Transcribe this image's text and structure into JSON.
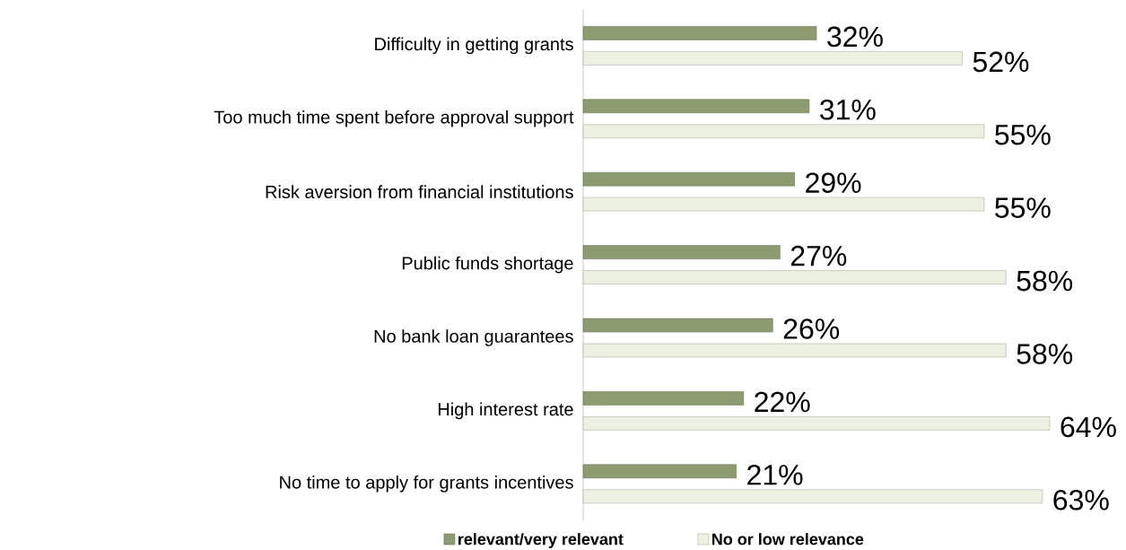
{
  "chart_data": {
    "type": "bar",
    "orientation": "horizontal",
    "legend": "bottom",
    "categories": [
      "Difficulty in getting grants",
      "Too much time spent before approval support",
      "Risk aversion from financial institutions",
      "Public funds shortage",
      "No bank loan guarantees",
      "High interest rate",
      "No time to apply for grants incentives"
    ],
    "series": [
      {
        "name": "relevant/very relevant",
        "color": "#8c9b70",
        "values": [
          32,
          31,
          29,
          27,
          26,
          22,
          21
        ],
        "value_labels": [
          "32%",
          "31%",
          "29%",
          "27%",
          "26%",
          "22%",
          "21%"
        ]
      },
      {
        "name": "No or low relevance",
        "color": "#edf1e2",
        "values": [
          52,
          55,
          55,
          58,
          58,
          64,
          63
        ],
        "value_labels": [
          "52%",
          "55%",
          "55%",
          "58%",
          "58%",
          "64%",
          "63%"
        ]
      }
    ]
  }
}
